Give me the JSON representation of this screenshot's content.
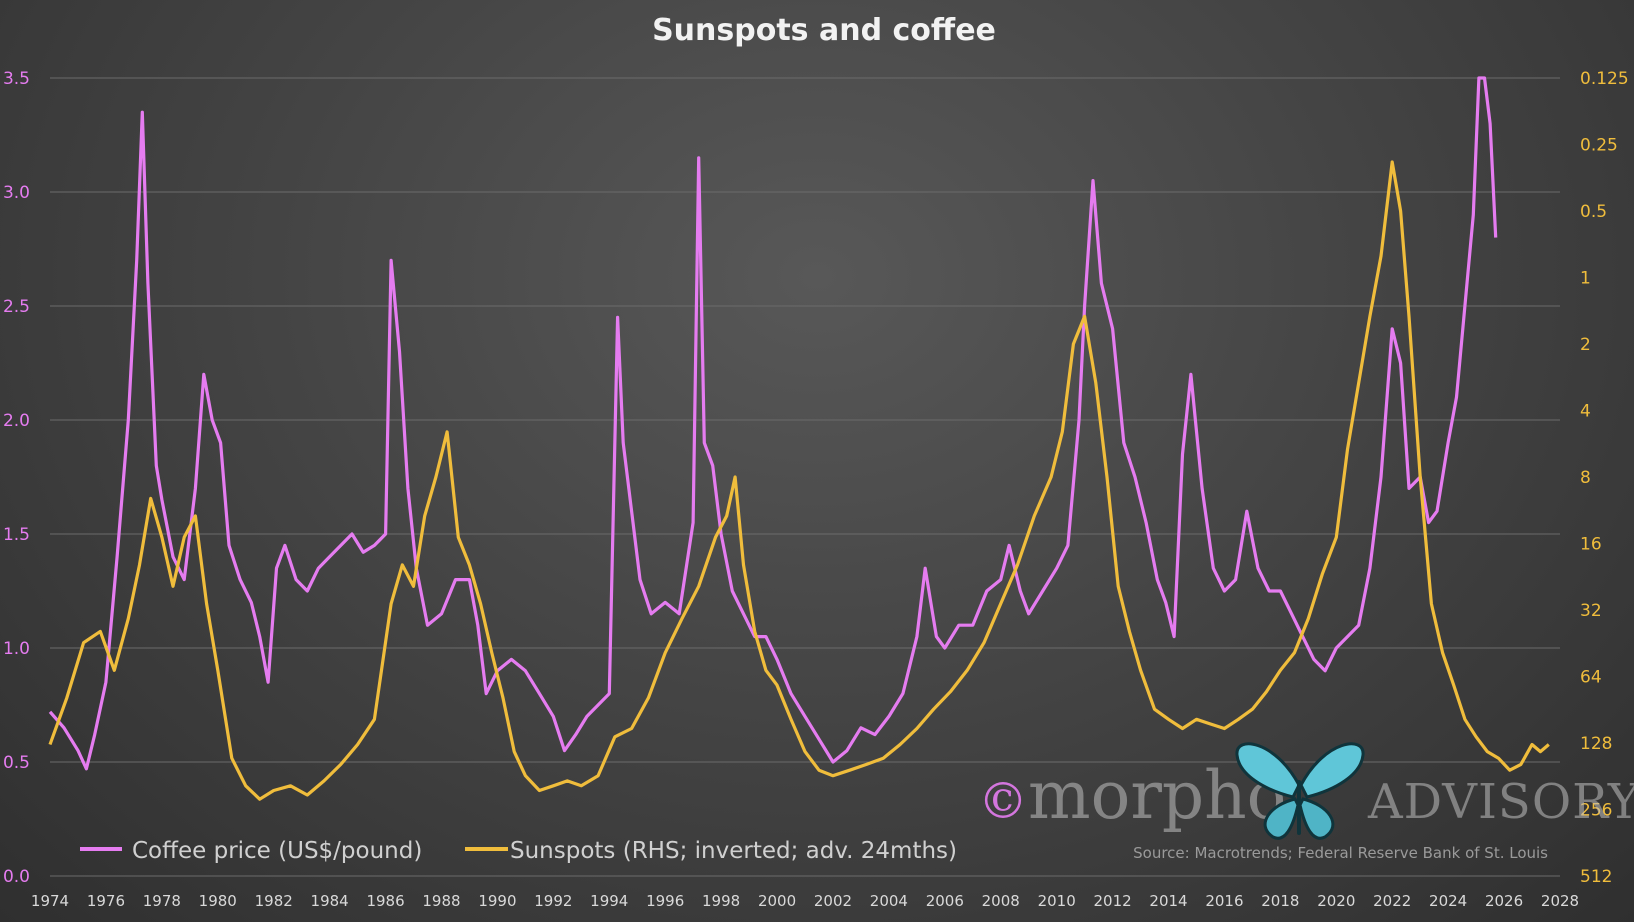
{
  "colors": {
    "coffee": "#e57cf0",
    "sunspots": "#f0bd3c",
    "title": "#f2f2f2",
    "xtick": "#d9d9d9",
    "legend_text": "#d0d0d0",
    "source_text": "#9a9a9a",
    "grid": "#6b6b6b",
    "watermark": "#bfbfbf"
  },
  "chart_data": {
    "type": "line",
    "title": "Sunspots and coffee",
    "source": "Source: Macrotrends; Federal Reserve Bank of St. Louis",
    "watermark": {
      "copyright": "©",
      "word1": "morpho",
      "word2": "ADVISORY"
    },
    "grid": true,
    "legend_position": "bottom-left",
    "x_axis": {
      "min": 1974,
      "max": 2028,
      "ticks": [
        1974,
        1976,
        1978,
        1980,
        1982,
        1984,
        1986,
        1988,
        1990,
        1992,
        1994,
        1996,
        1998,
        2000,
        2002,
        2004,
        2006,
        2008,
        2010,
        2012,
        2014,
        2016,
        2018,
        2020,
        2022,
        2024,
        2026,
        2028
      ],
      "tick_labels": [
        "1974",
        "1976",
        "1978",
        "1980",
        "1982",
        "1984",
        "1986",
        "1988",
        "1990",
        "1992",
        "1994",
        "1996",
        "1998",
        "2000",
        "2002",
        "2004",
        "2006",
        "2008",
        "2010",
        "2012",
        "2014",
        "2016",
        "2018",
        "2020",
        "2022",
        "2024",
        "2026",
        "2028"
      ]
    },
    "y_left": {
      "min": 0,
      "max": 3.5,
      "ticks": [
        0,
        0.5,
        1,
        1.5,
        2,
        2.5,
        3,
        3.5
      ],
      "tick_labels": [
        "0.0",
        "0.5",
        "1.0",
        "1.5",
        "2.0",
        "2.5",
        "3.0",
        "3.5"
      ]
    },
    "y_right": {
      "scale": "log2-inverted",
      "top": 0.125,
      "bottom": 512,
      "ticks": [
        0.125,
        0.25,
        0.5,
        1,
        2,
        4,
        8,
        16,
        32,
        64,
        128,
        256,
        512
      ],
      "tick_labels": [
        "0.125",
        "0.25",
        "0.5",
        "1",
        "2",
        "4",
        "8",
        "16",
        "32",
        "64",
        "128",
        "256",
        "512"
      ]
    },
    "series": [
      {
        "name": "Coffee price (US$/pound)",
        "axis": "left",
        "x": [
          1974.0,
          1974.5,
          1975.0,
          1975.3,
          1975.6,
          1976.0,
          1976.4,
          1976.8,
          1977.1,
          1977.3,
          1977.5,
          1977.8,
          1978.0,
          1978.4,
          1978.8,
          1979.2,
          1979.5,
          1979.8,
          1980.1,
          1980.4,
          1980.8,
          1981.2,
          1981.5,
          1981.8,
          1982.1,
          1982.4,
          1982.8,
          1983.2,
          1983.6,
          1984.0,
          1984.4,
          1984.8,
          1985.2,
          1985.6,
          1986.0,
          1986.2,
          1986.5,
          1986.8,
          1987.1,
          1987.5,
          1988.0,
          1988.5,
          1989.0,
          1989.3,
          1989.6,
          1990.0,
          1990.5,
          1991.0,
          1991.5,
          1992.0,
          1992.4,
          1992.8,
          1993.2,
          1993.6,
          1994.0,
          1994.3,
          1994.5,
          1994.8,
          1995.1,
          1995.5,
          1996.0,
          1996.5,
          1997.0,
          1997.2,
          1997.4,
          1997.7,
          1998.0,
          1998.4,
          1998.8,
          1999.2,
          1999.6,
          2000.0,
          2000.5,
          2001.0,
          2001.5,
          2002.0,
          2002.5,
          2003.0,
          2003.5,
          2004.0,
          2004.5,
          2005.0,
          2005.3,
          2005.7,
          2006.0,
          2006.5,
          2007.0,
          2007.5,
          2008.0,
          2008.3,
          2008.7,
          2009.0,
          2009.5,
          2010.0,
          2010.4,
          2010.8,
          2011.0,
          2011.3,
          2011.6,
          2012.0,
          2012.4,
          2012.8,
          2013.2,
          2013.6,
          2013.9,
          2014.2,
          2014.5,
          2014.8,
          2015.2,
          2015.6,
          2016.0,
          2016.4,
          2016.8,
          2017.2,
          2017.6,
          2018.0,
          2018.4,
          2018.8,
          2019.2,
          2019.6,
          2020.0,
          2020.4,
          2020.8,
          2021.2,
          2021.6,
          2022.0,
          2022.3,
          2022.6,
          2023.0,
          2023.3,
          2023.6,
          2024.0,
          2024.3,
          2024.6,
          2024.9,
          2025.1,
          2025.3,
          2025.5,
          2025.7
        ],
        "values": [
          0.72,
          0.65,
          0.55,
          0.47,
          0.62,
          0.85,
          1.4,
          2.0,
          2.7,
          3.35,
          2.6,
          1.8,
          1.65,
          1.4,
          1.3,
          1.7,
          2.2,
          2.0,
          1.9,
          1.45,
          1.3,
          1.2,
          1.05,
          0.85,
          1.35,
          1.45,
          1.3,
          1.25,
          1.35,
          1.4,
          1.45,
          1.5,
          1.42,
          1.45,
          1.5,
          2.7,
          2.3,
          1.7,
          1.35,
          1.1,
          1.15,
          1.3,
          1.3,
          1.1,
          0.8,
          0.9,
          0.95,
          0.9,
          0.8,
          0.7,
          0.55,
          0.62,
          0.7,
          0.75,
          0.8,
          2.45,
          1.9,
          1.6,
          1.3,
          1.15,
          1.2,
          1.15,
          1.55,
          3.15,
          1.9,
          1.8,
          1.5,
          1.25,
          1.15,
          1.05,
          1.05,
          0.95,
          0.8,
          0.7,
          0.6,
          0.5,
          0.55,
          0.65,
          0.62,
          0.7,
          0.8,
          1.05,
          1.35,
          1.05,
          1.0,
          1.1,
          1.1,
          1.25,
          1.3,
          1.45,
          1.25,
          1.15,
          1.25,
          1.35,
          1.45,
          2.0,
          2.5,
          3.05,
          2.6,
          2.4,
          1.9,
          1.75,
          1.55,
          1.3,
          1.2,
          1.05,
          1.85,
          2.2,
          1.7,
          1.35,
          1.25,
          1.3,
          1.6,
          1.35,
          1.25,
          1.25,
          1.15,
          1.05,
          0.95,
          0.9,
          1.0,
          1.05,
          1.1,
          1.35,
          1.75,
          2.4,
          2.25,
          1.7,
          1.75,
          1.55,
          1.6,
          1.9,
          2.1,
          2.5,
          2.9,
          3.5,
          3.5,
          3.3,
          2.8
        ]
      },
      {
        "name": "Sunspots (RHS; inverted; adv. 24mths)",
        "axis": "right",
        "x": [
          1974.0,
          1974.6,
          1975.2,
          1975.8,
          1976.3,
          1976.8,
          1977.2,
          1977.6,
          1978.0,
          1978.4,
          1978.8,
          1979.2,
          1979.6,
          1980.0,
          1980.5,
          1981.0,
          1981.5,
          1982.0,
          1982.6,
          1983.2,
          1983.8,
          1984.4,
          1985.0,
          1985.6,
          1986.2,
          1986.6,
          1987.0,
          1987.4,
          1987.8,
          1988.2,
          1988.6,
          1989.0,
          1989.4,
          1989.8,
          1990.2,
          1990.6,
          1991.0,
          1991.5,
          1992.0,
          1992.5,
          1993.0,
          1993.6,
          1994.2,
          1994.8,
          1995.4,
          1996.0,
          1996.6,
          1997.2,
          1997.8,
          1998.2,
          1998.5,
          1998.8,
          1999.2,
          1999.6,
          2000.0,
          2000.5,
          2001.0,
          2001.5,
          2002.0,
          2002.6,
          2003.2,
          2003.8,
          2004.4,
          2005.0,
          2005.6,
          2006.2,
          2006.8,
          2007.4,
          2008.0,
          2008.6,
          2009.2,
          2009.8,
          2010.2,
          2010.6,
          2011.0,
          2011.4,
          2011.8,
          2012.2,
          2012.6,
          2013.0,
          2013.5,
          2014.0,
          2014.5,
          2015.0,
          2015.5,
          2016.0,
          2016.5,
          2017.0,
          2017.5,
          2018.0,
          2018.5,
          2019.0,
          2019.5,
          2020.0,
          2020.4,
          2020.8,
          2021.2,
          2021.6,
          2022.0,
          2022.3,
          2022.6,
          2023.0,
          2023.4,
          2023.8,
          2024.2,
          2024.6,
          2025.0,
          2025.4,
          2025.8,
          2026.2,
          2026.6,
          2027.0,
          2027.3,
          2027.6
        ],
        "values": [
          130,
          80,
          45,
          40,
          60,
          35,
          20,
          10,
          15,
          25,
          15,
          12,
          30,
          60,
          150,
          200,
          230,
          210,
          200,
          220,
          190,
          160,
          130,
          100,
          30,
          20,
          25,
          12,
          8,
          5,
          15,
          20,
          30,
          50,
          80,
          140,
          180,
          210,
          200,
          190,
          200,
          180,
          120,
          110,
          80,
          50,
          35,
          25,
          15,
          12,
          8,
          20,
          40,
          60,
          70,
          100,
          140,
          170,
          180,
          170,
          160,
          150,
          130,
          110,
          90,
          75,
          60,
          45,
          30,
          20,
          12,
          8,
          5,
          2,
          1.5,
          3,
          8,
          25,
          40,
          60,
          90,
          100,
          110,
          100,
          105,
          110,
          100,
          90,
          75,
          60,
          50,
          35,
          22,
          15,
          6,
          3,
          1.5,
          0.8,
          0.3,
          0.5,
          1.5,
          8,
          30,
          50,
          70,
          100,
          120,
          140,
          150,
          170,
          160,
          130,
          140,
          130
        ]
      }
    ]
  }
}
